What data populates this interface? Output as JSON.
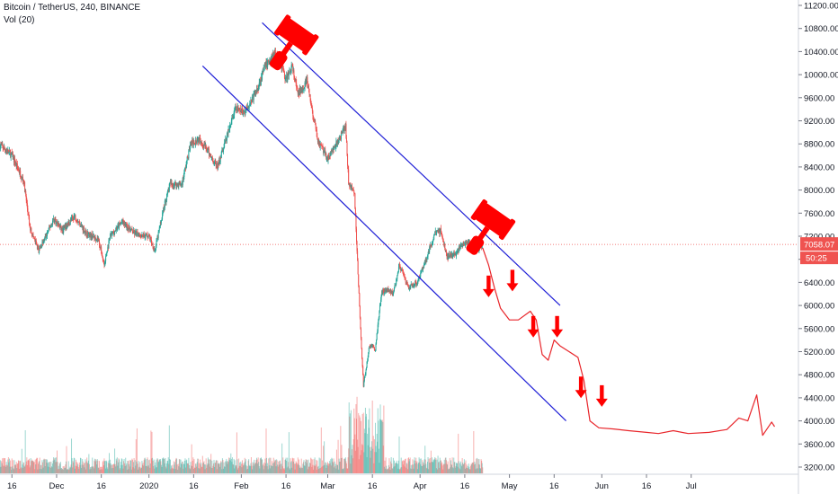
{
  "header": {
    "title": "Bitcoin / TetherUS, 240, BINANCE",
    "volume_label": "Vol (20)"
  },
  "chart_data": {
    "type": "candlestick",
    "symbol": "Bitcoin / TetherUS",
    "interval": "240",
    "exchange": "BINANCE",
    "ylim": [
      3200,
      11200
    ],
    "y_ticks": [
      "11200.00",
      "10800.00",
      "10400.00",
      "10000.00",
      "9600.00",
      "9200.00",
      "8800.00",
      "8400.00",
      "8000.00",
      "7600.00",
      "7200.00",
      "6800.00",
      "6400.00",
      "6000.00",
      "5600.00",
      "5200.00",
      "4800.00",
      "4400.00",
      "4000.00",
      "3600.00",
      "3200.00"
    ],
    "x_ticks": [
      "16",
      "Dec",
      "16",
      "2020",
      "16",
      "Feb",
      "16",
      "Mar",
      "16",
      "Apr",
      "16",
      "May",
      "16",
      "Jun",
      "16",
      "Jul"
    ],
    "x_range": [
      "2019-11-12",
      "2020-08-06"
    ],
    "last_price": "7058.07",
    "countdown": "50:25",
    "last_price_value": 7058,
    "price_path": [
      {
        "t": "2019-11-12",
        "p": 8780
      },
      {
        "t": "2019-11-16",
        "p": 8600
      },
      {
        "t": "2019-11-20",
        "p": 8150
      },
      {
        "t": "2019-11-22",
        "p": 7350
      },
      {
        "t": "2019-11-25",
        "p": 6950
      },
      {
        "t": "2019-11-27",
        "p": 7150
      },
      {
        "t": "2019-11-30",
        "p": 7500
      },
      {
        "t": "2019-12-03",
        "p": 7300
      },
      {
        "t": "2019-12-07",
        "p": 7550
      },
      {
        "t": "2019-12-11",
        "p": 7250
      },
      {
        "t": "2019-12-15",
        "p": 7150
      },
      {
        "t": "2019-12-17",
        "p": 6700
      },
      {
        "t": "2019-12-19",
        "p": 7200
      },
      {
        "t": "2019-12-23",
        "p": 7450
      },
      {
        "t": "2019-12-27",
        "p": 7250
      },
      {
        "t": "2020-01-01",
        "p": 7200
      },
      {
        "t": "2020-01-03",
        "p": 6950
      },
      {
        "t": "2020-01-06",
        "p": 7700
      },
      {
        "t": "2020-01-08",
        "p": 8100
      },
      {
        "t": "2020-01-12",
        "p": 8100
      },
      {
        "t": "2020-01-15",
        "p": 8800
      },
      {
        "t": "2020-01-18",
        "p": 8900
      },
      {
        "t": "2020-01-21",
        "p": 8650
      },
      {
        "t": "2020-01-24",
        "p": 8400
      },
      {
        "t": "2020-01-27",
        "p": 8900
      },
      {
        "t": "2020-01-30",
        "p": 9400
      },
      {
        "t": "2020-02-02",
        "p": 9350
      },
      {
        "t": "2020-02-06",
        "p": 9700
      },
      {
        "t": "2020-02-09",
        "p": 10150
      },
      {
        "t": "2020-02-12",
        "p": 10350
      },
      {
        "t": "2020-02-14",
        "p": 10250
      },
      {
        "t": "2020-02-16",
        "p": 9900
      },
      {
        "t": "2020-02-18",
        "p": 10150
      },
      {
        "t": "2020-02-20",
        "p": 9650
      },
      {
        "t": "2020-02-23",
        "p": 9900
      },
      {
        "t": "2020-02-25",
        "p": 9300
      },
      {
        "t": "2020-02-27",
        "p": 8800
      },
      {
        "t": "2020-03-01",
        "p": 8550
      },
      {
        "t": "2020-03-04",
        "p": 8800
      },
      {
        "t": "2020-03-07",
        "p": 9100
      },
      {
        "t": "2020-03-08",
        "p": 8150
      },
      {
        "t": "2020-03-10",
        "p": 7900
      },
      {
        "t": "2020-03-12",
        "p": 5600
      },
      {
        "t": "2020-03-13",
        "p": 4600
      },
      {
        "t": "2020-03-15",
        "p": 5300
      },
      {
        "t": "2020-03-17",
        "p": 5250
      },
      {
        "t": "2020-03-19",
        "p": 6200
      },
      {
        "t": "2020-03-21",
        "p": 6300
      },
      {
        "t": "2020-03-23",
        "p": 6200
      },
      {
        "t": "2020-03-25",
        "p": 6700
      },
      {
        "t": "2020-03-28",
        "p": 6300
      },
      {
        "t": "2020-03-31",
        "p": 6400
      },
      {
        "t": "2020-04-03",
        "p": 6800
      },
      {
        "t": "2020-04-06",
        "p": 7250
      },
      {
        "t": "2020-04-08",
        "p": 7300
      },
      {
        "t": "2020-04-10",
        "p": 6850
      },
      {
        "t": "2020-04-13",
        "p": 6900
      },
      {
        "t": "2020-04-15",
        "p": 7050
      },
      {
        "t": "2020-04-17",
        "p": 7100
      },
      {
        "t": "2020-04-20",
        "p": 6950
      },
      {
        "t": "2020-04-22",
        "p": 7050
      }
    ],
    "projection_path": [
      {
        "t": "2020-04-22",
        "p": 7000
      },
      {
        "t": "2020-04-24",
        "p": 6700
      },
      {
        "t": "2020-04-26",
        "p": 6300
      },
      {
        "t": "2020-04-28",
        "p": 5950
      },
      {
        "t": "2020-05-01",
        "p": 5750
      },
      {
        "t": "2020-05-04",
        "p": 5750
      },
      {
        "t": "2020-05-08",
        "p": 5900
      },
      {
        "t": "2020-05-10",
        "p": 5750
      },
      {
        "t": "2020-05-12",
        "p": 5150
      },
      {
        "t": "2020-05-14",
        "p": 5050
      },
      {
        "t": "2020-05-16",
        "p": 5400
      },
      {
        "t": "2020-05-18",
        "p": 5300
      },
      {
        "t": "2020-05-21",
        "p": 5200
      },
      {
        "t": "2020-05-24",
        "p": 5100
      },
      {
        "t": "2020-05-26",
        "p": 4700
      },
      {
        "t": "2020-05-28",
        "p": 4000
      },
      {
        "t": "2020-05-31",
        "p": 3880
      },
      {
        "t": "2020-06-05",
        "p": 3860
      },
      {
        "t": "2020-06-10",
        "p": 3830
      },
      {
        "t": "2020-06-16",
        "p": 3800
      },
      {
        "t": "2020-06-20",
        "p": 3780
      },
      {
        "t": "2020-06-25",
        "p": 3830
      },
      {
        "t": "2020-06-30",
        "p": 3780
      },
      {
        "t": "2020-07-07",
        "p": 3800
      },
      {
        "t": "2020-07-13",
        "p": 3850
      },
      {
        "t": "2020-07-17",
        "p": 4050
      },
      {
        "t": "2020-07-20",
        "p": 4000
      },
      {
        "t": "2020-07-23",
        "p": 4450
      },
      {
        "t": "2020-07-25",
        "p": 3750
      },
      {
        "t": "2020-07-28",
        "p": 3980
      },
      {
        "t": "2020-07-29",
        "p": 3900
      }
    ],
    "channel": {
      "upper": [
        {
          "t": "2020-02-08",
          "p": 10900
        },
        {
          "t": "2020-05-18",
          "p": 6000
        }
      ],
      "lower": [
        {
          "t": "2020-01-19",
          "p": 10150
        },
        {
          "t": "2020-05-20",
          "p": 4000
        }
      ]
    },
    "arrows": [
      {
        "t": "2020-04-24",
        "p": 6300
      },
      {
        "t": "2020-05-02",
        "p": 6400
      },
      {
        "t": "2020-05-09",
        "p": 5600
      },
      {
        "t": "2020-05-17",
        "p": 5600
      },
      {
        "t": "2020-05-25",
        "p": 4550
      },
      {
        "t": "2020-06-01",
        "p": 4400
      }
    ],
    "gavels": [
      {
        "t": "2020-02-19",
        "p": 10650
      },
      {
        "t": "2020-04-25",
        "p": 7450
      }
    ],
    "colors": {
      "up": "#26a69a",
      "down": "#ef5350",
      "channel": "#1f1fd6",
      "projection": "#e8262b",
      "annotation": "#ff0000",
      "last_price_tag": "#ef5350",
      "price_line": "#ef5350"
    }
  }
}
